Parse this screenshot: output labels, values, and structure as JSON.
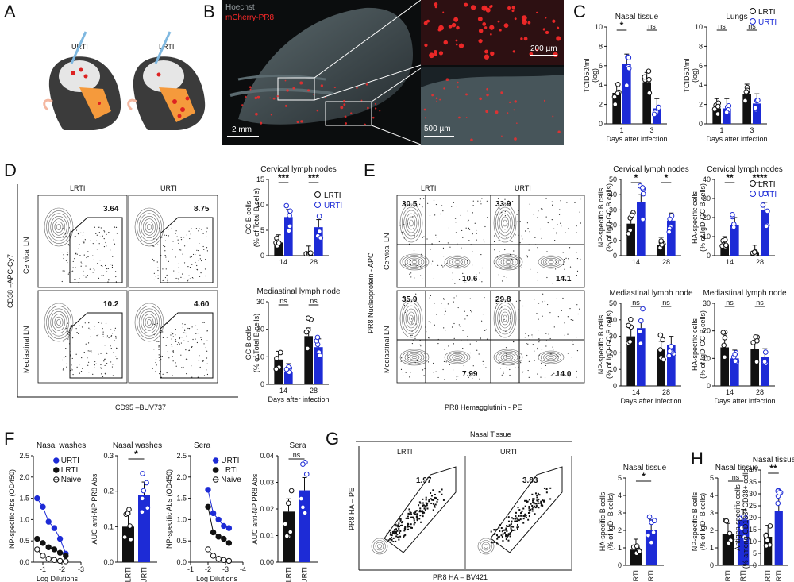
{
  "panels": {
    "A": {
      "letter": "A",
      "labels": [
        "URTI",
        "LRTI"
      ]
    },
    "B": {
      "letter": "B",
      "channel_hoechst": "Hoechst",
      "channel_mcherry": "mCherry-PR8",
      "scale_main": "2 mm",
      "scale_top": "200 µm",
      "scale_bottom": "500 µm"
    },
    "C": {
      "letter": "C",
      "legend": [
        "LRTI",
        "URTI"
      ],
      "xlabel": "Days after infection"
    },
    "D": {
      "letter": "D",
      "y_flow": "CD38 –APC-Cy7",
      "x_flow": "CD95 –BUV737",
      "col_labels": [
        "LRTI",
        "URTI"
      ],
      "row_labels": [
        "Cervical LN",
        "Mediastinal LN"
      ],
      "gates": [
        "3.64",
        "8.75",
        "10.2",
        "4.60"
      ],
      "legend": [
        "LRTI",
        "URTI"
      ],
      "xlabel": "Days after infection"
    },
    "E": {
      "letter": "E",
      "y_flow": "PR8 Nucleoprotein - APC",
      "x_flow": "PR8 Hemagglutinin - PE",
      "col_labels": [
        "LRTI",
        "URTI"
      ],
      "row_labels": [
        "Cervical LN",
        "Mediastinal LN"
      ],
      "quad": [
        "30.5",
        "10.6",
        "33.9",
        "14.1",
        "35.9",
        "7.99",
        "29.8",
        "14.0"
      ],
      "legend": [
        "LRTI",
        "URTI"
      ],
      "xlabel": "Days after infection"
    },
    "F": {
      "letter": "F",
      "xlabel": "Log Dilutions"
    },
    "G": {
      "letter": "G",
      "title": "Nasal Tissue",
      "col_labels": [
        "LRTI",
        "URTI"
      ],
      "gates": [
        "1.97",
        "3.83"
      ],
      "y_flow": "PR8 HA – PE",
      "x_flow": "PR8 HA – BV421"
    },
    "H": {
      "letter": "H"
    }
  },
  "chart_data": [
    {
      "id": "C-nasal",
      "type": "bar",
      "title": "Nasal tissue",
      "ylabel": "TCID50/ml (log)",
      "xlabel": "Days after infection",
      "categories": [
        "1",
        "3"
      ],
      "ylim": [
        0,
        10
      ],
      "yticks": [
        "0",
        "2",
        "4",
        "6",
        "8",
        "10"
      ],
      "series": [
        {
          "name": "LRTI",
          "values": [
            3.2,
            4.3
          ]
        },
        {
          "name": "URTI",
          "values": [
            6.2,
            1.6
          ]
        }
      ],
      "sig": [
        "*",
        "ns"
      ]
    },
    {
      "id": "C-lungs",
      "type": "bar",
      "title": "Lungs",
      "ylabel": "TCID50/ml (log)",
      "xlabel": "Days after infection",
      "categories": [
        "1",
        "3"
      ],
      "ylim": [
        0,
        10
      ],
      "yticks": [
        "0",
        "2",
        "4",
        "6",
        "8",
        "10"
      ],
      "series": [
        {
          "name": "LRTI",
          "values": [
            1.6,
            3.1
          ]
        },
        {
          "name": "URTI",
          "values": [
            1.6,
            2.1
          ]
        }
      ],
      "sig": [
        "ns",
        "ns"
      ]
    },
    {
      "id": "D-cervical",
      "type": "bar",
      "title": "Cervical lymph nodes",
      "ylabel": "GC B cells (% of Total B cells)",
      "categories": [
        "14",
        "28"
      ],
      "ylim": [
        0,
        15
      ],
      "yticks": [
        "0",
        "5",
        "10",
        "15"
      ],
      "series": [
        {
          "name": "LRTI",
          "values": [
            2.6,
            0.4
          ]
        },
        {
          "name": "URTI",
          "values": [
            7.6,
            5.6
          ]
        }
      ],
      "sig": [
        "***",
        "***"
      ]
    },
    {
      "id": "D-mediastinal",
      "type": "bar",
      "title": "Mediastinal lymph node",
      "ylabel": "GC B cells (% of Total B cells)",
      "xlabel": "Days after infection",
      "categories": [
        "14",
        "28"
      ],
      "ylim": [
        0,
        30
      ],
      "yticks": [
        "0",
        "10",
        "20",
        "30"
      ],
      "series": [
        {
          "name": "LRTI",
          "values": [
            9,
            17.5
          ]
        },
        {
          "name": "URTI",
          "values": [
            4.5,
            13.5
          ]
        }
      ],
      "sig": [
        "ns",
        "ns"
      ]
    },
    {
      "id": "E-np-cervical",
      "type": "bar",
      "title": "Cervical lymph nodes",
      "ylabel": "NP-specific B cells (% of IgD-GC B cells)",
      "categories": [
        "14",
        "28"
      ],
      "ylim": [
        0,
        50
      ],
      "yticks": [
        "0",
        "10",
        "20",
        "30",
        "40",
        "50"
      ],
      "series": [
        {
          "name": "LRTI",
          "values": [
            21,
            7
          ]
        },
        {
          "name": "URTI",
          "values": [
            35,
            23
          ]
        }
      ],
      "sig": [
        "*",
        "*"
      ]
    },
    {
      "id": "E-ha-cervical",
      "type": "bar",
      "title": "Cervical lymph nodes",
      "ylabel": "HA-specific cells (% of IgD-GC B cells)",
      "categories": [
        "14",
        "28"
      ],
      "ylim": [
        0,
        40
      ],
      "yticks": [
        "0",
        "10",
        "20",
        "30",
        "40"
      ],
      "series": [
        {
          "name": "LRTI",
          "values": [
            6,
            1.5
          ]
        },
        {
          "name": "URTI",
          "values": [
            16,
            24
          ]
        }
      ],
      "sig": [
        "**",
        "****"
      ]
    },
    {
      "id": "E-np-mediastinal",
      "type": "bar",
      "title": "Mediastinal lymph node",
      "ylabel": "NP-specific B cells (% of IgD-GC B cells)",
      "xlabel": "Days after infection",
      "categories": [
        "14",
        "28"
      ],
      "ylim": [
        0,
        50
      ],
      "yticks": [
        "0",
        "10",
        "20",
        "30",
        "40",
        "50"
      ],
      "series": [
        {
          "name": "LRTI",
          "values": [
            30,
            22
          ]
        },
        {
          "name": "URTI",
          "values": [
            35,
            25
          ]
        }
      ],
      "sig": [
        "ns",
        "ns"
      ]
    },
    {
      "id": "E-ha-mediastinal",
      "type": "bar",
      "title": "Mediastinal lymph node",
      "ylabel": "HA-specific cells (% of IgD-GC B cells)",
      "xlabel": "Days after infection",
      "categories": [
        "14",
        "28"
      ],
      "ylim": [
        0,
        30
      ],
      "yticks": [
        "0",
        "10",
        "20",
        "30"
      ],
      "series": [
        {
          "name": "LRTI",
          "values": [
            14,
            13.5
          ]
        },
        {
          "name": "URTI",
          "values": [
            10,
            10.5
          ]
        }
      ],
      "sig": [
        "ns",
        "ns"
      ]
    },
    {
      "id": "F-nasal-curve",
      "type": "line",
      "title": "Nasal washes",
      "ylabel": "NP-specific Abs (OD450)",
      "xlabel": "Log Dilutions",
      "x": [
        -0.7,
        -1.0,
        -1.3,
        -1.6,
        -1.9,
        -2.2
      ],
      "xlim": [
        -0.5,
        -3
      ],
      "ylim": [
        0,
        2.5
      ],
      "xticks": [
        "-1",
        "-2",
        "-3"
      ],
      "yticks": [
        "0.0",
        "0.5",
        "1.0",
        "1.5",
        "2.0",
        "2.5"
      ],
      "series": [
        {
          "name": "URTI",
          "values": [
            1.5,
            1.3,
            0.95,
            0.8,
            0.55,
            0.2
          ]
        },
        {
          "name": "LRTI",
          "values": [
            0.55,
            0.45,
            0.35,
            0.3,
            0.22,
            0.15
          ]
        },
        {
          "name": "Naive",
          "values": [
            0.3,
            0.15,
            0.08,
            0.05,
            0.03,
            0.02
          ]
        }
      ]
    },
    {
      "id": "F-nasal-auc",
      "type": "bar",
      "title": "Nasal washes",
      "ylabel": "AUC anti-NP PR8 Abs",
      "categories": [
        "LRTI",
        "URTI"
      ],
      "ylim": [
        0,
        0.3
      ],
      "yticks": [
        "0.0",
        "0.1",
        "0.2",
        "0.3"
      ],
      "values": [
        0.1,
        0.19
      ],
      "sig": "*"
    },
    {
      "id": "F-sera-curve",
      "type": "line",
      "title": "Sera",
      "ylabel": "NP-specific Abs (OD450)",
      "xlabel": "Log Dilutions",
      "x": [
        -2.0,
        -2.3,
        -2.6,
        -2.9,
        -3.2
      ],
      "xlim": [
        -1,
        -4
      ],
      "ylim": [
        0,
        2.5
      ],
      "xticks": [
        "-1",
        "-2",
        "-3",
        "-4"
      ],
      "yticks": [
        "0.0",
        "0.5",
        "1.0",
        "1.5",
        "2.0",
        "2.5"
      ],
      "series": [
        {
          "name": "URTI",
          "values": [
            1.7,
            1.15,
            1.0,
            0.85,
            0.8
          ]
        },
        {
          "name": "LRTI",
          "values": [
            1.3,
            0.7,
            0.6,
            0.55,
            0.45
          ]
        },
        {
          "name": "Naive",
          "values": [
            0.3,
            0.15,
            0.08,
            0.05,
            0.03
          ]
        }
      ]
    },
    {
      "id": "F-sera-auc",
      "type": "bar",
      "title": "Sera",
      "ylabel": "AUC anti-NP PR8 Abs",
      "categories": [
        "LRTI",
        "URTI"
      ],
      "ylim": [
        0,
        0.04
      ],
      "yticks": [
        "0.00",
        "0.01",
        "0.02",
        "0.03",
        "0.04"
      ],
      "values": [
        0.019,
        0.027
      ],
      "sig": "ns"
    },
    {
      "id": "G-ha",
      "type": "bar",
      "title": "Nasal tissue",
      "ylabel": "HA-specific B cells (% of IgD- B cells)",
      "categories": [
        "LRTI",
        "URTI"
      ],
      "ylim": [
        0,
        5
      ],
      "yticks": [
        "0",
        "1",
        "2",
        "3",
        "4",
        "5"
      ],
      "values": [
        0.9,
        2.0
      ],
      "sig": "*"
    },
    {
      "id": "G-np",
      "type": "bar",
      "title": "Nasal tissue",
      "ylabel": "NP-specific B cells (% of IgD- B cells)",
      "categories": [
        "LRTI",
        "URTI"
      ],
      "ylim": [
        0,
        5
      ],
      "yticks": [
        "0",
        "1",
        "2",
        "3",
        "4",
        "5"
      ],
      "values": [
        1.8,
        2.6
      ],
      "sig": "ns"
    },
    {
      "id": "H",
      "type": "bar",
      "title": "Nasal tissue",
      "ylabel": "Antigen specific cells (% among CD138+CD38+ cells)",
      "categories": [
        "LRTI",
        "URTI"
      ],
      "ylim": [
        0,
        40
      ],
      "yticks": [
        "0",
        "5",
        "10",
        "15",
        "20",
        "25",
        "30",
        "35",
        "40"
      ],
      "values": [
        12,
        23
      ],
      "sig": "**"
    }
  ]
}
